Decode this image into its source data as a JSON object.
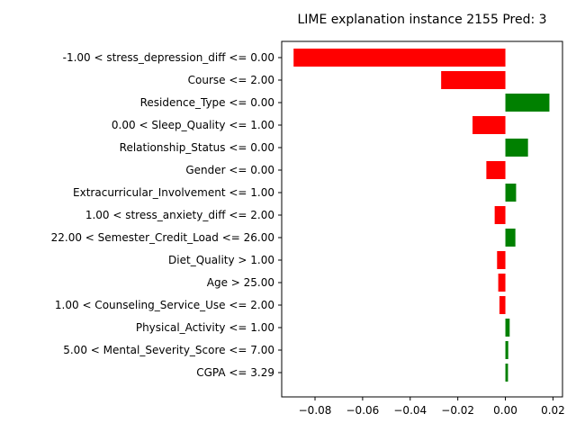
{
  "chart_data": {
    "type": "bar",
    "orientation": "horizontal",
    "title": "LIME explanation instance 2155 Pred: 3",
    "xlabel": "",
    "ylabel": "",
    "xlim": [
      -0.094,
      0.024
    ],
    "xticks": [
      -0.08,
      -0.06,
      -0.04,
      -0.02,
      0.0,
      0.02
    ],
    "xtick_labels": [
      "−0.08",
      "−0.06",
      "−0.04",
      "−0.02",
      "0.00",
      "0.02"
    ],
    "grid": false,
    "legend": "none",
    "colors": {
      "negative": "#ff0000",
      "positive": "#008000"
    },
    "categories": [
      "-1.00 < stress_depression_diff <= 0.00",
      "Course <= 2.00",
      "Residence_Type <= 0.00",
      "0.00 < Sleep_Quality <= 1.00",
      "Relationship_Status <= 0.00",
      "Gender <= 0.00",
      "Extracurricular_Involvement <= 1.00",
      "1.00 < stress_anxiety_diff <= 2.00",
      "22.00 < Semester_Credit_Load <= 26.00",
      "Diet_Quality > 1.00",
      "Age > 25.00",
      "1.00 < Counseling_Service_Use <= 2.00",
      "Physical_Activity <= 1.00",
      "5.00 < Mental_Severity_Score <= 7.00",
      "CGPA <= 3.29"
    ],
    "values": [
      -0.089,
      -0.027,
      0.0185,
      -0.0138,
      0.0095,
      -0.008,
      0.0045,
      -0.0045,
      0.0042,
      -0.0035,
      -0.003,
      -0.0025,
      0.0018,
      0.0012,
      0.0011
    ]
  }
}
